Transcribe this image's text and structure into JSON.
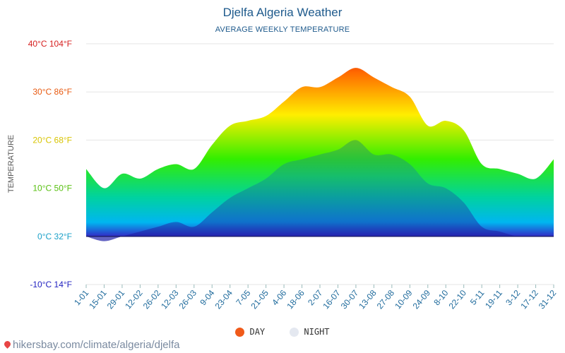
{
  "chart_data": {
    "type": "area",
    "title": "Djelfa Algeria Weather",
    "subtitle": "AVERAGE WEEKLY TEMPERATURE",
    "ylabel": "TEMPERATURE",
    "xlabel": "",
    "ylim": [
      -10,
      40
    ],
    "y_ticks": [
      {
        "value": 40,
        "label": "40°C 104°F",
        "color": "#d62020"
      },
      {
        "value": 30,
        "label": "30°C 86°F",
        "color": "#e85a10"
      },
      {
        "value": 20,
        "label": "20°C 68°F",
        "color": "#d8c400"
      },
      {
        "value": 10,
        "label": "10°C 50°F",
        "color": "#58c010"
      },
      {
        "value": 0,
        "label": "0°C 32°F",
        "color": "#1aa0c8"
      },
      {
        "value": -10,
        "label": "-10°C 14°F",
        "color": "#2020c0"
      }
    ],
    "categories": [
      "1-01",
      "15-01",
      "29-01",
      "12-02",
      "26-02",
      "12-03",
      "26-03",
      "9-04",
      "23-04",
      "7-05",
      "21-05",
      "4-06",
      "18-06",
      "2-07",
      "16-07",
      "30-07",
      "13-08",
      "27-08",
      "10-09",
      "24-09",
      "8-10",
      "22-10",
      "5-11",
      "19-11",
      "3-12",
      "17-12",
      "31-12"
    ],
    "series": [
      {
        "name": "DAY",
        "color": "#f05a1a",
        "values": [
          14,
          10,
          13,
          12,
          14,
          15,
          14,
          19,
          23,
          24,
          25,
          28,
          31,
          31,
          33,
          35,
          33,
          31,
          29,
          23,
          24,
          22,
          15,
          14,
          13,
          12,
          16
        ]
      },
      {
        "name": "NIGHT",
        "color": "#e4e8f0",
        "values": [
          0,
          -1,
          0,
          1,
          2,
          3,
          2,
          5,
          8,
          10,
          12,
          15,
          16,
          17,
          18,
          20,
          17,
          17,
          15,
          11,
          10,
          7,
          2,
          1,
          0,
          0,
          0
        ]
      }
    ],
    "legend_position": "bottom-center",
    "grid": true
  },
  "source_text": "hikersbay.com/climate/algeria/djelfa"
}
